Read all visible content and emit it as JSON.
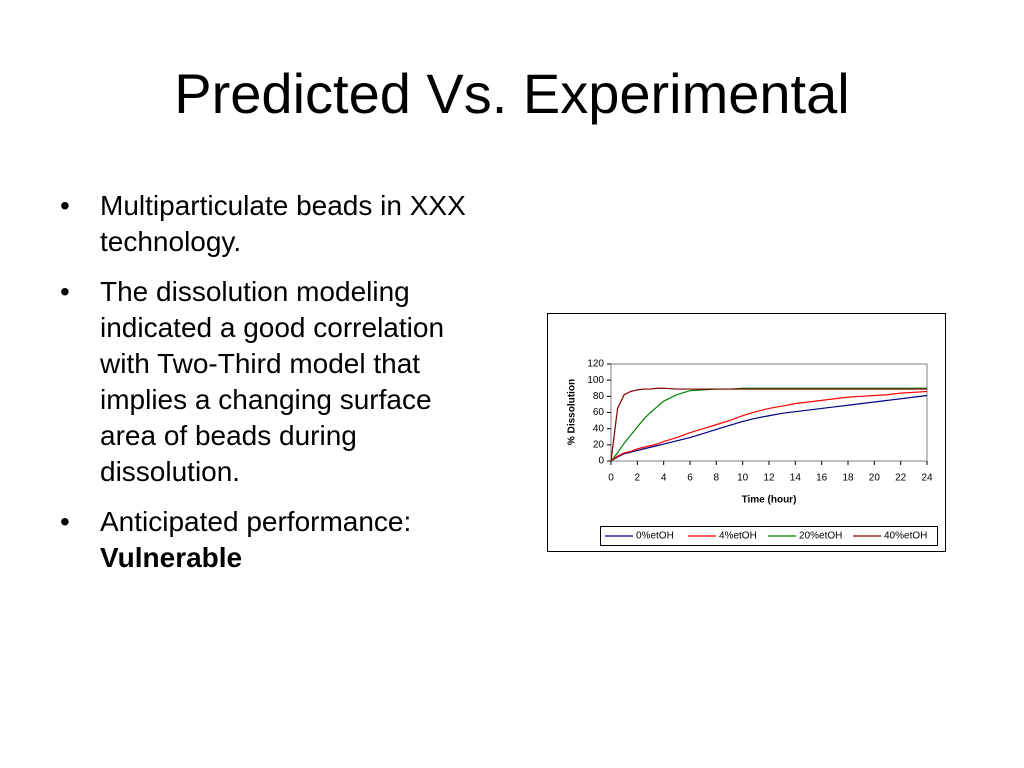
{
  "slide": {
    "title": "Predicted Vs. Experimental",
    "bullets": [
      {
        "text": "Multiparticulate beads in XXX technology."
      },
      {
        "text": "The dissolution modeling indicated a good correlation with Two-Third model that implies a changing surface area of beads during dissolution."
      },
      {
        "text": "Anticipated performance:",
        "bold": "Vulnerable"
      }
    ]
  },
  "chart_data": {
    "type": "line",
    "x_label": "Time (hour)",
    "y_label": "% Dissolution",
    "x": [
      0,
      0.5,
      1,
      1.5,
      2,
      2.5,
      3,
      3.5,
      4,
      5,
      6,
      7,
      8,
      9,
      10,
      11,
      12,
      13,
      14,
      15,
      16,
      17,
      18,
      19,
      20,
      21,
      22,
      23,
      24
    ],
    "series": [
      {
        "name": "0%etOH",
        "color": "#000080",
        "values": [
          0,
          5,
          9,
          11,
          13,
          15,
          17,
          19,
          21,
          25,
          29,
          34,
          39,
          44,
          49,
          53,
          56,
          59,
          61,
          63,
          65,
          67,
          69,
          71,
          73,
          75,
          77,
          79,
          81
        ]
      },
      {
        "name": "4%etOH",
        "color": "#ff0000",
        "values": [
          0,
          6,
          10,
          12,
          15,
          17,
          19,
          21,
          24,
          29,
          35,
          40,
          45,
          50,
          56,
          61,
          65,
          68,
          71,
          73,
          75,
          77,
          79,
          80,
          81,
          82,
          84,
          85,
          86
        ]
      },
      {
        "name": "20%etOH",
        "color": "#008000",
        "values": [
          0,
          10,
          22,
          32,
          42,
          52,
          60,
          67,
          74,
          82,
          87,
          88,
          89,
          89,
          90,
          90,
          90,
          90,
          90,
          90,
          90,
          90,
          90,
          90,
          90,
          90,
          90,
          90,
          90
        ]
      },
      {
        "name": "40%etOH",
        "color": "#800000",
        "values": [
          0,
          65,
          82,
          86,
          88,
          89,
          89,
          90,
          90,
          89,
          89,
          89,
          89,
          89,
          89,
          89,
          89,
          89,
          89,
          89,
          89,
          89,
          89,
          89,
          89,
          89,
          89,
          89,
          89
        ]
      }
    ],
    "xlim": [
      0,
      24
    ],
    "xticks": [
      0,
      2,
      4,
      6,
      8,
      10,
      12,
      14,
      16,
      18,
      20,
      22,
      24
    ],
    "ylim": [
      0,
      120
    ],
    "yticks": [
      0,
      20,
      40,
      60,
      80,
      100,
      120
    ],
    "legend": "bottom",
    "grid": false
  }
}
